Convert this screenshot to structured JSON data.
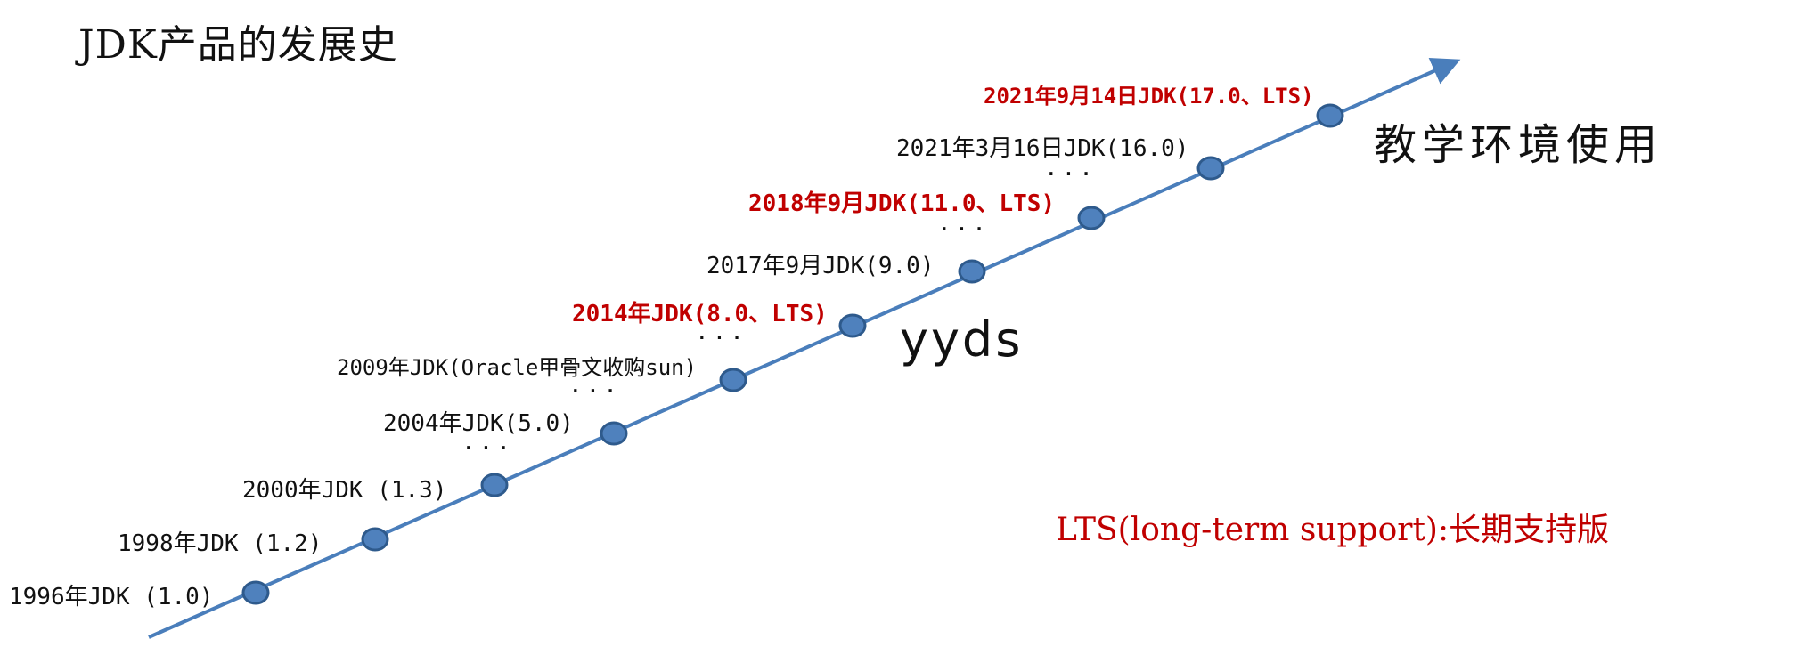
{
  "title": "JDK产品的发展史",
  "milestones": [
    {
      "label": "1996年JDK (1.0)",
      "lts": false
    },
    {
      "label": "1998年JDK (1.2)",
      "lts": false
    },
    {
      "label": "2000年JDK (1.3)",
      "lts": false
    },
    {
      "label": "2004年JDK(5.0)",
      "lts": false
    },
    {
      "label": "2009年JDK(Oracle甲骨文收购sun)",
      "lts": false
    },
    {
      "label": "2014年JDK(8.0、LTS)",
      "lts": true
    },
    {
      "label": "2017年9月JDK(9.0)",
      "lts": false
    },
    {
      "label": "2018年9月JDK(11.0、LTS)",
      "lts": true
    },
    {
      "label": "2021年3月16日JDK(16.0)",
      "lts": false
    },
    {
      "label": "2021年9月14日JDK(17.0、LTS)",
      "lts": true
    }
  ],
  "ellipsis": "...",
  "annotations": {
    "yyds": "yyds",
    "teaching": "教学环境使用"
  },
  "lts_note": "LTS(long-term support):长期支持版",
  "colors": {
    "line": "#4a7ebb",
    "node_fill": "#4f81bd",
    "node_stroke": "#2e5a8c",
    "highlight": "#c00000"
  }
}
